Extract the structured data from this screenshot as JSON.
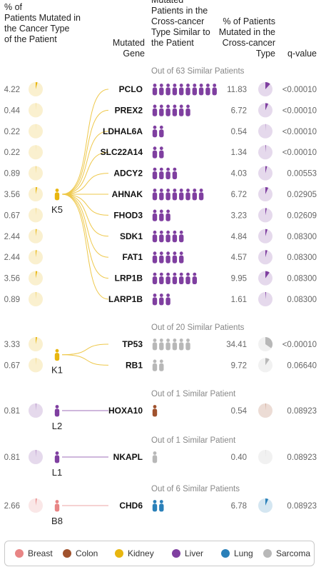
{
  "colors": {
    "Breast": "#e88585",
    "Colon": "#a0522d",
    "Kidney": "#e8b60f",
    "Liver": "#7f3fa0",
    "Lung": "#2a80b9",
    "Sarcoma": "#b8b8b8"
  },
  "headers": {
    "col1": [
      "% of",
      "Patients Mutated in",
      "the Cancer Type",
      "of the Patient"
    ],
    "col2": [
      "Mutated",
      "Gene"
    ],
    "col3": [
      "Mutated",
      "Patients in the",
      "Cross-cancer",
      "Type Similar to",
      "the Patient"
    ],
    "col4": [
      "% of Patients",
      "Mutated in the",
      "Cross-cancer",
      "Type"
    ],
    "col5": [
      "q-value"
    ]
  },
  "chart_data": {
    "type": "table",
    "groups": [
      {
        "patient": "K5",
        "patient_type": "Kidney",
        "cross_type": "Liver",
        "similar_label": "Out of 63 Similar Patients",
        "rows": [
          {
            "pct_own": "4.22",
            "gene": "PCLO",
            "mutated_count": 10,
            "pct_cross": "11.83",
            "q": "<0.00010"
          },
          {
            "pct_own": "0.44",
            "gene": "PREX2",
            "mutated_count": 6,
            "pct_cross": "6.72",
            "q": "<0.00010"
          },
          {
            "pct_own": "0.22",
            "gene": "LDHAL6A",
            "mutated_count": 2,
            "pct_cross": "0.54",
            "q": "<0.00010"
          },
          {
            "pct_own": "0.22",
            "gene": "SLC22A14",
            "mutated_count": 2,
            "pct_cross": "1.34",
            "q": "<0.00010"
          },
          {
            "pct_own": "0.89",
            "gene": "ADCY2",
            "mutated_count": 4,
            "pct_cross": "4.03",
            "q": "0.00553"
          },
          {
            "pct_own": "3.56",
            "gene": "AHNAK",
            "mutated_count": 8,
            "pct_cross": "6.72",
            "q": "0.02905"
          },
          {
            "pct_own": "0.67",
            "gene": "FHOD3",
            "mutated_count": 3,
            "pct_cross": "3.23",
            "q": "0.02609"
          },
          {
            "pct_own": "2.44",
            "gene": "SDK1",
            "mutated_count": 5,
            "pct_cross": "4.84",
            "q": "0.08300"
          },
          {
            "pct_own": "2.44",
            "gene": "FAT1",
            "mutated_count": 5,
            "pct_cross": "4.57",
            "q": "0.08300"
          },
          {
            "pct_own": "3.56",
            "gene": "LRP1B",
            "mutated_count": 7,
            "pct_cross": "9.95",
            "q": "0.08300"
          },
          {
            "pct_own": "0.89",
            "gene": "LARP1B",
            "mutated_count": 3,
            "pct_cross": "1.61",
            "q": "0.08300"
          }
        ]
      },
      {
        "patient": "K1",
        "patient_type": "Kidney",
        "cross_type": "Sarcoma",
        "similar_label": "Out of 20 Similar Patients",
        "rows": [
          {
            "pct_own": "3.33",
            "gene": "TP53",
            "mutated_count": 6,
            "pct_cross": "34.41",
            "q": "<0.00010"
          },
          {
            "pct_own": "0.67",
            "gene": "RB1",
            "mutated_count": 2,
            "pct_cross": "9.72",
            "q": "0.06640"
          }
        ]
      },
      {
        "patient": "L2",
        "patient_type": "Liver",
        "cross_type": "Colon",
        "similar_label": "Out of 1 Similar Patient",
        "rows": [
          {
            "pct_own": "0.81",
            "gene": "HOXA10",
            "mutated_count": 1,
            "pct_cross": "0.54",
            "q": "0.08923"
          }
        ]
      },
      {
        "patient": "L1",
        "patient_type": "Liver",
        "cross_type": "Sarcoma",
        "similar_label": "Out of 1 Similar Patient",
        "rows": [
          {
            "pct_own": "0.81",
            "gene": "NKAPL",
            "mutated_count": 1,
            "pct_cross": "0.40",
            "q": "0.08923"
          }
        ]
      },
      {
        "patient": "B8",
        "patient_type": "Breast",
        "cross_type": "Lung",
        "similar_label": "Out of 6 Similar Patients",
        "rows": [
          {
            "pct_own": "2.66",
            "gene": "CHD6",
            "mutated_count": 2,
            "pct_cross": "6.78",
            "q": "0.08923"
          }
        ]
      }
    ]
  },
  "legend": [
    {
      "label": "Breast",
      "type": "Breast"
    },
    {
      "label": "Colon",
      "type": "Colon"
    },
    {
      "label": "Kidney",
      "type": "Kidney"
    },
    {
      "label": "Liver",
      "type": "Liver"
    },
    {
      "label": "Lung",
      "type": "Lung"
    },
    {
      "label": "Sarcoma",
      "type": "Sarcoma"
    }
  ]
}
